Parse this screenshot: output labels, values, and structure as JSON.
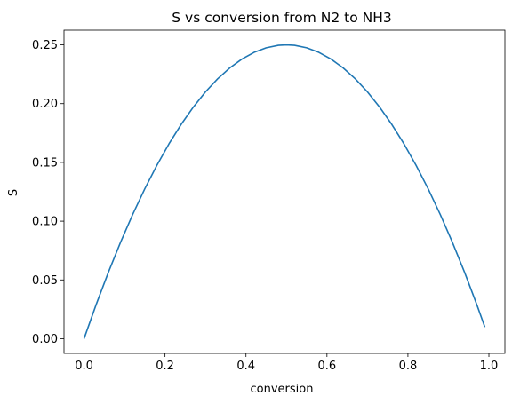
{
  "chart_data": {
    "type": "line",
    "title": "S vs conversion from N2 to NH3",
    "xlabel": "conversion",
    "ylabel": "S",
    "xlim": [
      -0.0495,
      1.0395
    ],
    "ylim": [
      -0.0125,
      0.2625
    ],
    "x_ticks": [
      0.0,
      0.2,
      0.4,
      0.6,
      0.8,
      1.0
    ],
    "x_tick_labels": [
      "0.0",
      "0.2",
      "0.4",
      "0.6",
      "0.8",
      "1.0"
    ],
    "y_ticks": [
      0.0,
      0.05,
      0.1,
      0.15,
      0.2,
      0.25
    ],
    "y_tick_labels": [
      "0.00",
      "0.05",
      "0.10",
      "0.15",
      "0.20",
      "0.25"
    ],
    "grid": false,
    "legend": "none",
    "series": [
      {
        "color": "#1f77b4",
        "x": [
          0.0,
          0.03,
          0.06,
          0.09,
          0.12,
          0.15,
          0.18,
          0.21,
          0.24,
          0.27,
          0.3,
          0.33,
          0.36,
          0.39,
          0.42,
          0.45,
          0.48,
          0.5,
          0.52,
          0.55,
          0.58,
          0.61,
          0.64,
          0.67,
          0.7,
          0.73,
          0.76,
          0.79,
          0.82,
          0.85,
          0.88,
          0.91,
          0.94,
          0.97,
          0.99
        ],
        "y": [
          0.0,
          0.0291,
          0.0564,
          0.0819,
          0.1056,
          0.1275,
          0.1476,
          0.1659,
          0.1824,
          0.1971,
          0.21,
          0.2211,
          0.2304,
          0.2379,
          0.2436,
          0.2475,
          0.2496,
          0.25,
          0.2496,
          0.2475,
          0.2436,
          0.2379,
          0.2304,
          0.2211,
          0.21,
          0.1971,
          0.1824,
          0.1659,
          0.1476,
          0.1275,
          0.1056,
          0.0819,
          0.0564,
          0.0291,
          0.0099
        ]
      }
    ]
  }
}
